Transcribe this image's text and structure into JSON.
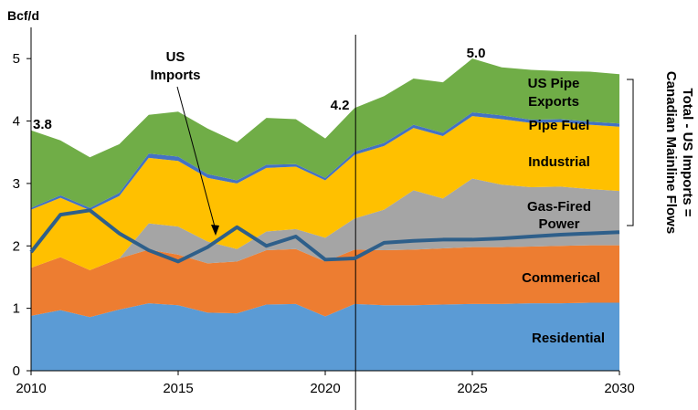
{
  "chart_data": {
    "type": "area",
    "ylabel": "Bcf/d",
    "xlim": [
      2010,
      2030
    ],
    "ylim": [
      0,
      5.5
    ],
    "x_ticks": [
      2010,
      2015,
      2020,
      2025,
      2030
    ],
    "y_ticks": [
      0,
      1,
      2,
      3,
      4,
      5
    ],
    "x": [
      2010,
      2011,
      2012,
      2013,
      2014,
      2015,
      2016,
      2017,
      2018,
      2019,
      2020,
      2021,
      2022,
      2023,
      2024,
      2025,
      2026,
      2027,
      2028,
      2029,
      2030
    ],
    "series": [
      {
        "name": "Residential",
        "color": "#5b9bd5",
        "values": [
          0.88,
          0.97,
          0.86,
          0.98,
          1.08,
          1.05,
          0.93,
          0.92,
          1.06,
          1.07,
          0.87,
          1.07,
          1.05,
          1.05,
          1.06,
          1.07,
          1.07,
          1.08,
          1.08,
          1.09,
          1.09
        ]
      },
      {
        "name": "Commerical",
        "color": "#ed7d31",
        "values": [
          0.77,
          0.85,
          0.75,
          0.82,
          0.86,
          0.81,
          0.79,
          0.83,
          0.87,
          0.88,
          0.88,
          0.87,
          0.88,
          0.89,
          0.9,
          0.91,
          0.91,
          0.91,
          0.92,
          0.92,
          0.92
        ]
      },
      {
        "name": "Gas-Fired Power",
        "color": "#a5a5a5",
        "values": [
          0.0,
          0.0,
          0.0,
          0.0,
          0.42,
          0.45,
          0.35,
          0.2,
          0.3,
          0.32,
          0.38,
          0.5,
          0.65,
          0.95,
          0.8,
          1.1,
          1.0,
          0.95,
          0.95,
          0.9,
          0.87
        ]
      },
      {
        "name": "Industrial",
        "color": "#ffc000",
        "values": [
          0.93,
          0.95,
          0.96,
          1.0,
          1.05,
          1.05,
          1.02,
          1.05,
          1.02,
          1.0,
          0.92,
          1.02,
          1.02,
          1.0,
          1.0,
          1.0,
          1.05,
          1.03,
          1.03,
          1.03,
          1.03
        ]
      },
      {
        "name": "Pipe Fuel",
        "color": "#4472c4",
        "values": [
          0.03,
          0.04,
          0.04,
          0.05,
          0.07,
          0.07,
          0.06,
          0.05,
          0.05,
          0.04,
          0.04,
          0.05,
          0.05,
          0.05,
          0.05,
          0.06,
          0.06,
          0.05,
          0.05,
          0.05,
          0.05
        ]
      },
      {
        "name": "US Pipe Exports",
        "color": "#70ad47",
        "values": [
          1.24,
          0.88,
          0.81,
          0.78,
          0.62,
          0.72,
          0.73,
          0.61,
          0.75,
          0.72,
          0.63,
          0.7,
          0.75,
          0.74,
          0.81,
          0.86,
          0.77,
          0.8,
          0.77,
          0.8,
          0.79
        ]
      }
    ],
    "us_imports": {
      "name": "US Imports",
      "color": "#2e5f8a",
      "values": [
        1.9,
        2.5,
        2.57,
        2.2,
        1.93,
        1.75,
        1.98,
        2.3,
        2.0,
        2.15,
        1.78,
        1.8,
        2.05,
        2.08,
        2.1,
        2.1,
        2.12,
        2.15,
        2.18,
        2.2,
        2.22
      ]
    },
    "divider_x": 2021,
    "annotations": {
      "v2010": "3.8",
      "v2021": "4.2",
      "v2025": "5.0",
      "us_imports_label": [
        "US",
        "Imports"
      ],
      "residential": "Residential",
      "commerical": "Commerical",
      "gas_power": [
        "Gas-Fired",
        "Power"
      ],
      "industrial": "Industrial",
      "pipe_fuel": "Pipe Fuel",
      "pipe_exports": [
        "US Pipe",
        "Exports"
      ],
      "right_label": [
        "Total - US Imports =",
        "Canadian Mainline Flows"
      ]
    }
  }
}
